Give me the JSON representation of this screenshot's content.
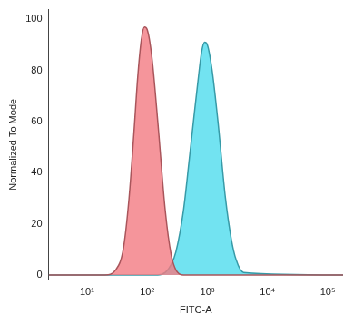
{
  "chart_data": {
    "type": "area",
    "x_label": "FITC-A",
    "y_label": "Normalized To Mode",
    "x": [
      2.3,
      20,
      30,
      40,
      50,
      60,
      70,
      80,
      90,
      100,
      120,
      150,
      200,
      250,
      300,
      400,
      500,
      600,
      700,
      800,
      900,
      1000,
      1200,
      1500,
      2000,
      2500,
      3000,
      4000,
      180000
    ],
    "series": [
      {
        "color": "#f27a82",
        "values": [
          0,
          0,
          2,
          10,
          30,
          55,
          78,
          92,
          97,
          96,
          85,
          60,
          25,
          8,
          2,
          0,
          0,
          0,
          0,
          0,
          0,
          0,
          0,
          0,
          0,
          0,
          0,
          0,
          0
        ]
      },
      {
        "color": "#4fdcee",
        "values": [
          0,
          0,
          0,
          0,
          0,
          0,
          0,
          0,
          0,
          0,
          0,
          0,
          1,
          4,
          9,
          25,
          45,
          62,
          76,
          87,
          91,
          90,
          80,
          60,
          30,
          14,
          6,
          1,
          0
        ]
      }
    ],
    "log": "x",
    "xlim": [
      2.3,
      180000
    ],
    "xticks": [
      {
        "value": 10,
        "label": "10¹"
      },
      {
        "value": 100,
        "label": "10²"
      },
      {
        "value": 1000,
        "label": "10³"
      },
      {
        "value": 10000,
        "label": "10⁴"
      },
      {
        "value": 100000,
        "label": "10⁵"
      }
    ],
    "ylim": [
      -2,
      104
    ],
    "yticks": [
      0,
      20,
      40,
      60,
      80,
      100
    ],
    "grid": false
  }
}
